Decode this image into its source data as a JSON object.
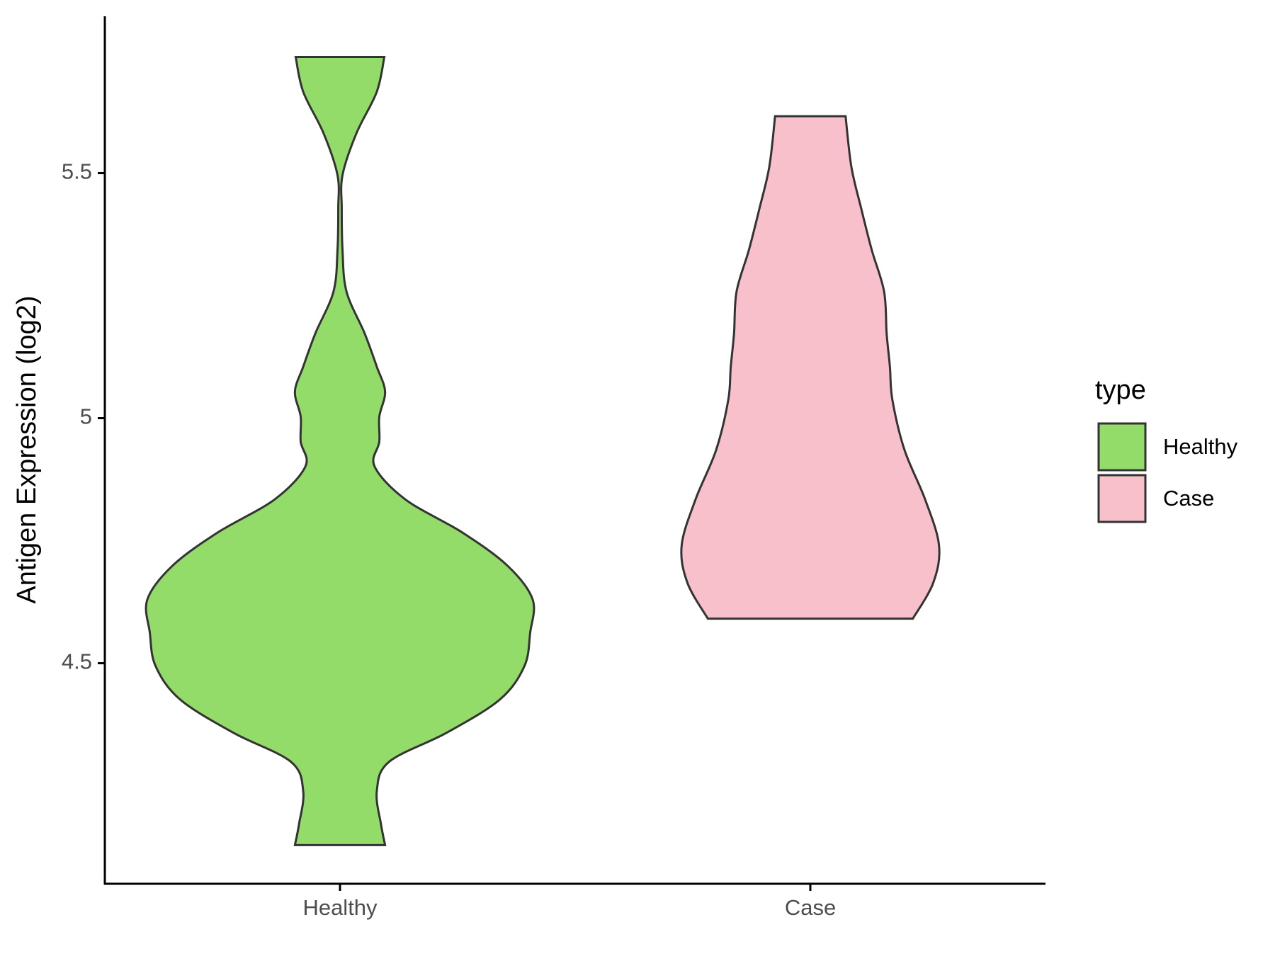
{
  "chart_data": {
    "type": "violin",
    "y_label": "Antigen Expression (log2)",
    "categories": [
      "Healthy",
      "Case"
    ],
    "ylim": [
      4.05,
      5.82
    ],
    "yticks": [
      4.5,
      5.0,
      5.5
    ],
    "legend_title": "type",
    "legend_position": "right",
    "series": [
      {
        "name": "Healthy",
        "color": "#93dc6a",
        "values": [
          4.129,
          4.171,
          4.239,
          4.299,
          4.358,
          4.426,
          4.494,
          4.562,
          4.63,
          4.698,
          4.766,
          4.834,
          4.902,
          4.952,
          5.003,
          5.054,
          5.105,
          5.173,
          5.258,
          5.343,
          5.428,
          5.496,
          5.581,
          5.666,
          5.737
        ],
        "density": [
          0.234,
          0.213,
          0.191,
          0.255,
          0.553,
          0.83,
          0.957,
          0.987,
          1.0,
          0.872,
          0.638,
          0.34,
          0.179,
          0.204,
          0.204,
          0.234,
          0.191,
          0.128,
          0.034,
          0.013,
          0.009,
          0.013,
          0.085,
          0.191,
          0.23
        ]
      },
      {
        "name": "Case",
        "color": "#f7c0cb",
        "values": [
          4.591,
          4.664,
          4.74,
          4.834,
          4.935,
          5.037,
          5.105,
          5.173,
          5.258,
          5.343,
          5.428,
          5.513,
          5.616
        ],
        "density": [
          0.532,
          0.638,
          0.668,
          0.596,
          0.489,
          0.426,
          0.413,
          0.396,
          0.383,
          0.319,
          0.264,
          0.213,
          0.183
        ]
      }
    ]
  }
}
